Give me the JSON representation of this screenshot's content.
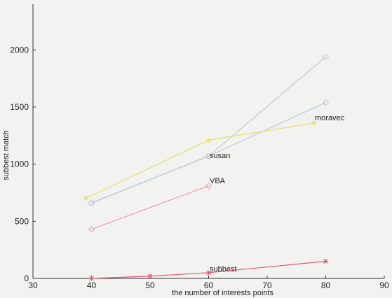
{
  "chart_data": {
    "type": "line",
    "xlabel": "the number of interests points",
    "ylabel": "subbest match",
    "xlim": [
      30,
      90
    ],
    "ylim": [
      0,
      2400
    ],
    "xticks": [
      30,
      40,
      50,
      60,
      70,
      80,
      90
    ],
    "yticks": [
      0,
      500,
      1000,
      1500,
      2000
    ],
    "grid": false,
    "series": [
      {
        "name": "moravec",
        "color": "#c8c8c8",
        "marker": "diamond",
        "x": [
          40,
          60,
          80
        ],
        "y": [
          660,
          1070,
          1940
        ]
      },
      {
        "name": "susan",
        "color": "#b9c8d4",
        "marker": "circle",
        "x": [
          40,
          60,
          80
        ],
        "y": [
          660,
          1070,
          1540
        ]
      },
      {
        "name": "VBA",
        "color": "#e8a0a8",
        "marker": "diamond",
        "x": [
          40,
          60
        ],
        "y": [
          430,
          810
        ]
      },
      {
        "name": "",
        "color": "#e8e070",
        "marker": "star",
        "x": [
          39,
          60,
          78
        ],
        "y": [
          700,
          1210,
          1360
        ]
      },
      {
        "name": "subbest",
        "color": "#e05a6a",
        "marker": "star",
        "x": [
          40,
          50,
          60,
          80
        ],
        "y": [
          0,
          20,
          50,
          150
        ]
      }
    ]
  }
}
